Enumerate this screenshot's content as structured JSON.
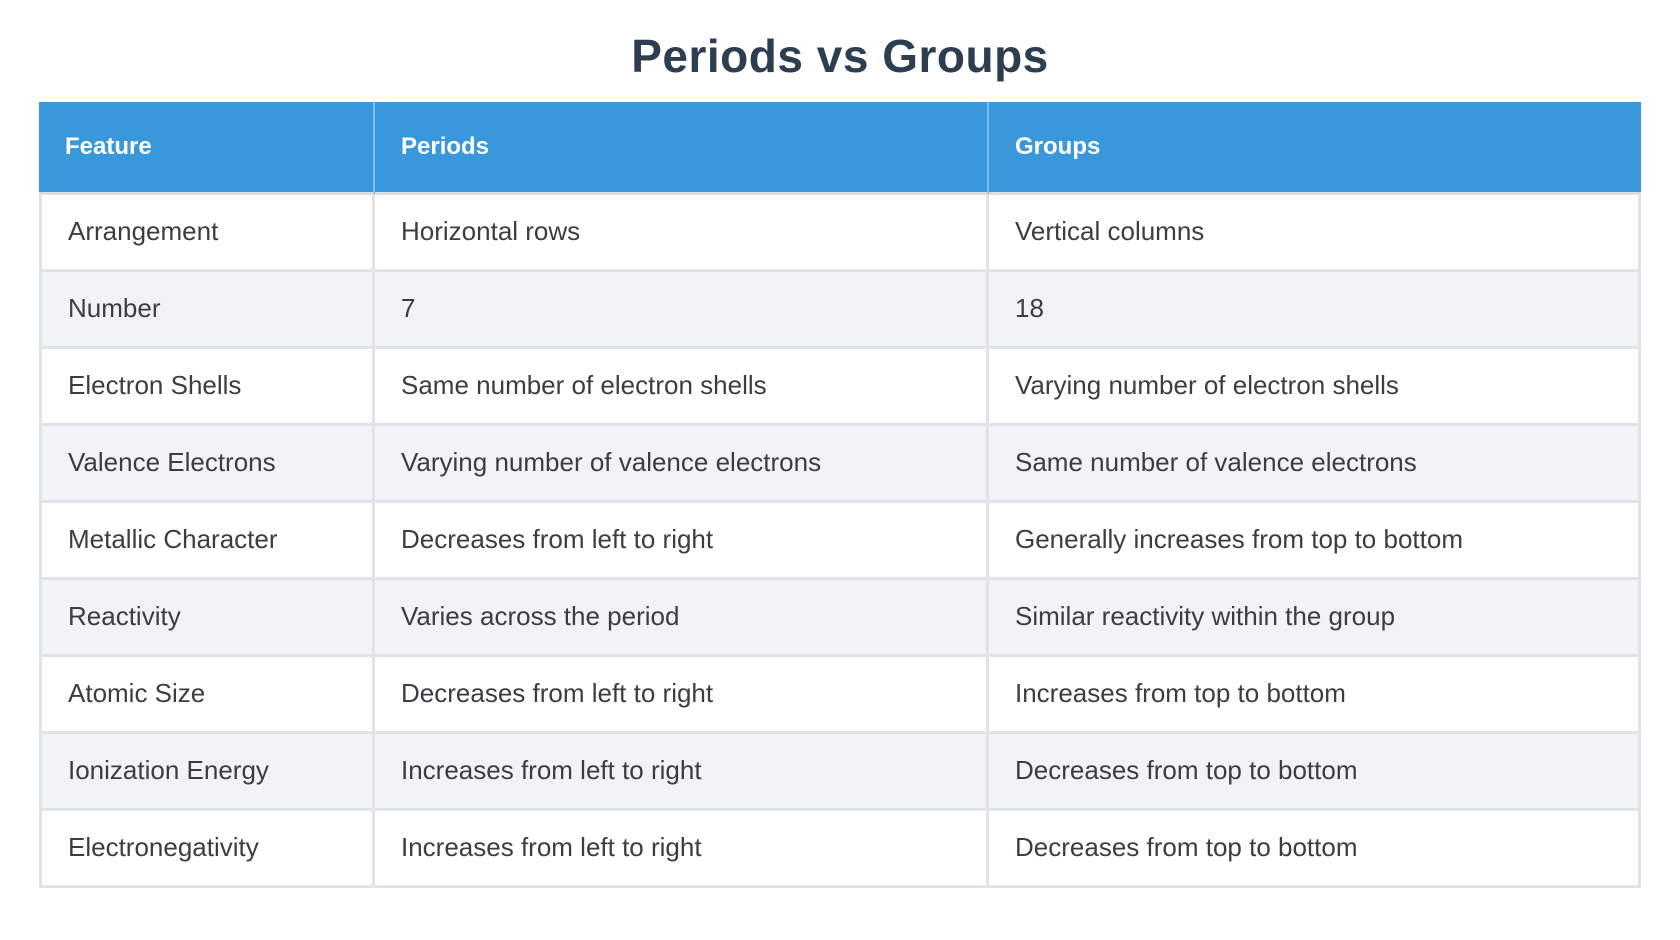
{
  "title": "Periods vs Groups",
  "chart_data": {
    "type": "table",
    "title": "Periods vs Groups",
    "columns": [
      "Feature",
      "Periods",
      "Groups"
    ],
    "rows": [
      [
        "Arrangement",
        "Horizontal rows",
        "Vertical columns"
      ],
      [
        "Number",
        "7",
        "18"
      ],
      [
        "Electron Shells",
        "Same number of electron shells",
        "Varying number of electron shells"
      ],
      [
        "Valence Electrons",
        "Varying number of valence electrons",
        "Same number of valence electrons"
      ],
      [
        "Metallic Character",
        "Decreases from left to right",
        "Generally increases from top to bottom"
      ],
      [
        "Reactivity",
        "Varies across the period",
        "Similar reactivity within the group"
      ],
      [
        "Atomic Size",
        "Decreases from left to right",
        "Increases from top to bottom"
      ],
      [
        "Ionization Energy",
        "Increases from left to right",
        "Decreases from top to bottom"
      ],
      [
        "Electronegativity",
        "Increases from left to right",
        "Decreases from top to bottom"
      ]
    ],
    "layout_hints": {
      "header_position": "top",
      "zebra_striping": true,
      "grid": true
    }
  },
  "colors": {
    "header_bg": "#3898db",
    "header_text": "#ffffff",
    "title_text": "#2c3e50",
    "cell_text": "#3a3e44",
    "row_bg": "#ffffff",
    "row_alt_bg": "#f0f4f8",
    "border": "#e0e3e7",
    "page_bg": "#ffffff"
  }
}
